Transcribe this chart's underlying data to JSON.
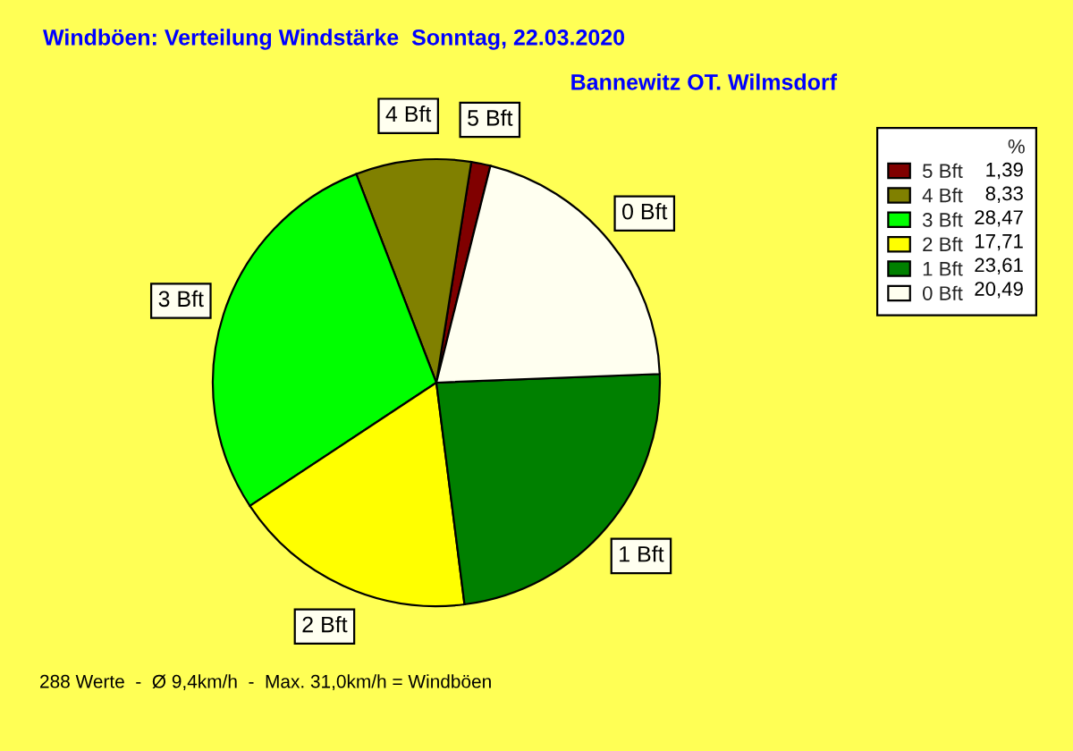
{
  "chart_data": {
    "type": "pie",
    "title": "Windböen: Verteilung Windstärke  Sonntag, 22.03.2020",
    "subtitle": "Bannewitz OT. Wilmsdorf",
    "legend_title": "%",
    "categories": [
      "5 Bft",
      "4 Bft",
      "3 Bft",
      "2 Bft",
      "1 Bft",
      "0 Bft"
    ],
    "values": [
      1.39,
      8.33,
      28.47,
      17.71,
      23.61,
      20.49
    ],
    "value_labels": [
      "1,39",
      "8,33",
      "28,47",
      "17,71",
      "23,61",
      "20,49"
    ],
    "colors": [
      "#800000",
      "#808000",
      "#00ff00",
      "#ffff00",
      "#008000",
      "#fffff0"
    ],
    "legend": "top right",
    "annotations": [
      "288 Werte  -  Ø 9,4km/h  -  Max. 31,0km/h = Windböen"
    ]
  }
}
